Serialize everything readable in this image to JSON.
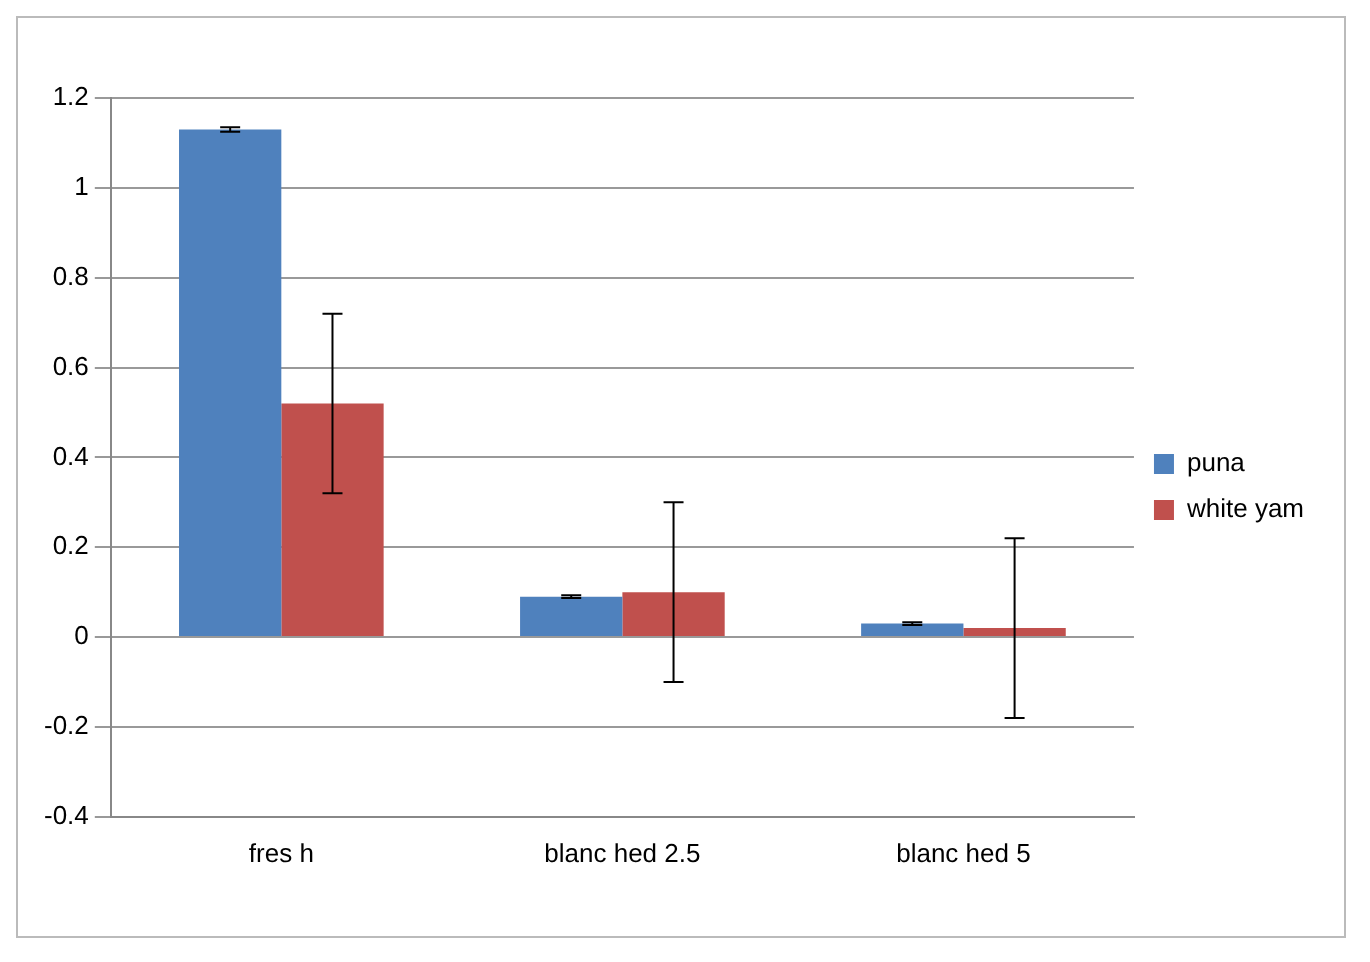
{
  "chart_data": {
    "type": "bar",
    "categories": [
      "fres h",
      "blanc hed 2.5",
      "blanc hed 5"
    ],
    "series": [
      {
        "name": "puna",
        "color": "#4f81bd",
        "values": [
          1.13,
          0.09,
          0.03
        ],
        "errors": [
          0.005,
          0.003,
          0.003
        ]
      },
      {
        "name": "white yam",
        "color": "#c0504d",
        "values": [
          0.52,
          0.1,
          0.02
        ],
        "errors": [
          0.2,
          0.2,
          0.2
        ]
      }
    ],
    "ylim": [
      -0.4,
      1.2
    ],
    "yticks": [
      -0.4,
      -0.2,
      0,
      0.2,
      0.4,
      0.6,
      0.8,
      1,
      1.2
    ],
    "grid": "y",
    "legend": "right"
  }
}
